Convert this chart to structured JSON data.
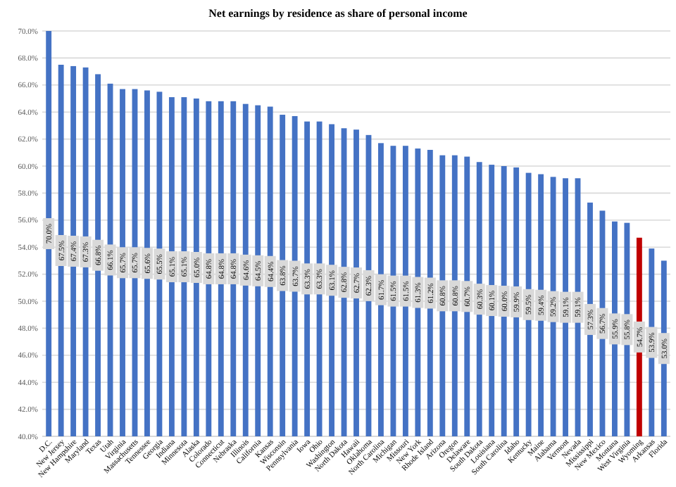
{
  "chart_data": {
    "type": "bar",
    "title": "Net earnings by residence as share of personal income",
    "categories": [
      "D.C.",
      "New Jersey",
      "New Hampshire",
      "Maryland",
      "Texas",
      "Utah",
      "Virginia",
      "Massachusetts",
      "Tennessee",
      "Georgia",
      "Indiana",
      "Minnesota",
      "Alaska",
      "Colorado",
      "Connecticut",
      "Nebraska",
      "Illinois",
      "California",
      "Kansas",
      "Wisconsin",
      "Pennsylvania",
      "Iowa",
      "Ohio",
      "Washington",
      "North Dakota",
      "Hawaii",
      "Oklahoma",
      "North Carolina",
      "Michigan",
      "Missouri",
      "New York",
      "Rhode Island",
      "Arizona",
      "Oregon",
      "Delaware",
      "South Dakota",
      "Louisiana",
      "South Carolina",
      "Idaho",
      "Kentucky",
      "Maine",
      "Alabama",
      "Vermont",
      "Nevada",
      "Mississippi",
      "New Mexico",
      "Montana",
      "West Virginia",
      "Wyoming",
      "Arkansas",
      "Florida"
    ],
    "values": [
      70.0,
      67.5,
      67.4,
      67.3,
      66.8,
      66.1,
      65.7,
      65.7,
      65.6,
      65.5,
      65.1,
      65.1,
      65.0,
      64.8,
      64.8,
      64.8,
      64.6,
      64.5,
      64.4,
      63.8,
      63.7,
      63.3,
      63.3,
      63.1,
      62.8,
      62.7,
      62.3,
      61.7,
      61.5,
      61.5,
      61.3,
      61.2,
      60.8,
      60.8,
      60.7,
      60.3,
      60.1,
      60.0,
      59.9,
      59.5,
      59.4,
      59.2,
      59.1,
      59.1,
      57.3,
      56.7,
      55.9,
      55.8,
      54.7,
      53.9,
      53.0
    ],
    "colors": [
      "#4472c4",
      "#4472c4",
      "#4472c4",
      "#4472c4",
      "#4472c4",
      "#4472c4",
      "#4472c4",
      "#4472c4",
      "#4472c4",
      "#4472c4",
      "#4472c4",
      "#4472c4",
      "#4472c4",
      "#4472c4",
      "#4472c4",
      "#4472c4",
      "#4472c4",
      "#4472c4",
      "#4472c4",
      "#4472c4",
      "#4472c4",
      "#4472c4",
      "#4472c4",
      "#4472c4",
      "#4472c4",
      "#4472c4",
      "#4472c4",
      "#4472c4",
      "#4472c4",
      "#4472c4",
      "#4472c4",
      "#4472c4",
      "#4472c4",
      "#4472c4",
      "#4472c4",
      "#4472c4",
      "#4472c4",
      "#4472c4",
      "#4472c4",
      "#4472c4",
      "#4472c4",
      "#4472c4",
      "#4472c4",
      "#4472c4",
      "#4472c4",
      "#4472c4",
      "#4472c4",
      "#4472c4",
      "#c00000",
      "#4472c4",
      "#4472c4"
    ],
    "value_labels": [
      "70.0%",
      "67.5%",
      "67.4%",
      "67.3%",
      "66.8%",
      "66.1%",
      "65.7%",
      "65.7%",
      "65.6%",
      "65.5%",
      "65.1%",
      "65.1%",
      "65.0%",
      "64.8%",
      "64.8%",
      "64.8%",
      "64.6%",
      "64.5%",
      "64.4%",
      "63.8%",
      "63.7%",
      "63.3%",
      "63.3%",
      "63.1%",
      "62.8%",
      "62.7%",
      "62.3%",
      "61.7%",
      "61.5%",
      "61.5%",
      "61.3%",
      "61.2%",
      "60.8%",
      "60.8%",
      "60.7%",
      "60.3%",
      "60.1%",
      "60.0%",
      "59.9%",
      "59.5%",
      "59.4%",
      "59.2%",
      "59.1%",
      "59.1%",
      "57.3%",
      "56.7%",
      "55.9%",
      "55.8%",
      "54.7%",
      "53.9%",
      "53.0%"
    ],
    "ylim": [
      40,
      70
    ],
    "yticks": [
      {
        "value": 40,
        "label": "40.0%"
      },
      {
        "value": 42,
        "label": "42.0%"
      },
      {
        "value": 44,
        "label": "44.0%"
      },
      {
        "value": 46,
        "label": "46.0%"
      },
      {
        "value": 48,
        "label": "48.0%"
      },
      {
        "value": 50,
        "label": "50.0%"
      },
      {
        "value": 52,
        "label": "52.0%"
      },
      {
        "value": 54,
        "label": "54.0%"
      },
      {
        "value": 56,
        "label": "56.0%"
      },
      {
        "value": 58,
        "label": "58.0%"
      },
      {
        "value": 60,
        "label": "60.0%"
      },
      {
        "value": 62,
        "label": "62.0%"
      },
      {
        "value": 64,
        "label": "64.0%"
      },
      {
        "value": 66,
        "label": "66.0%"
      },
      {
        "value": 68,
        "label": "68.0%"
      },
      {
        "value": 70,
        "label": "70.0%"
      }
    ],
    "grid": "y"
  }
}
